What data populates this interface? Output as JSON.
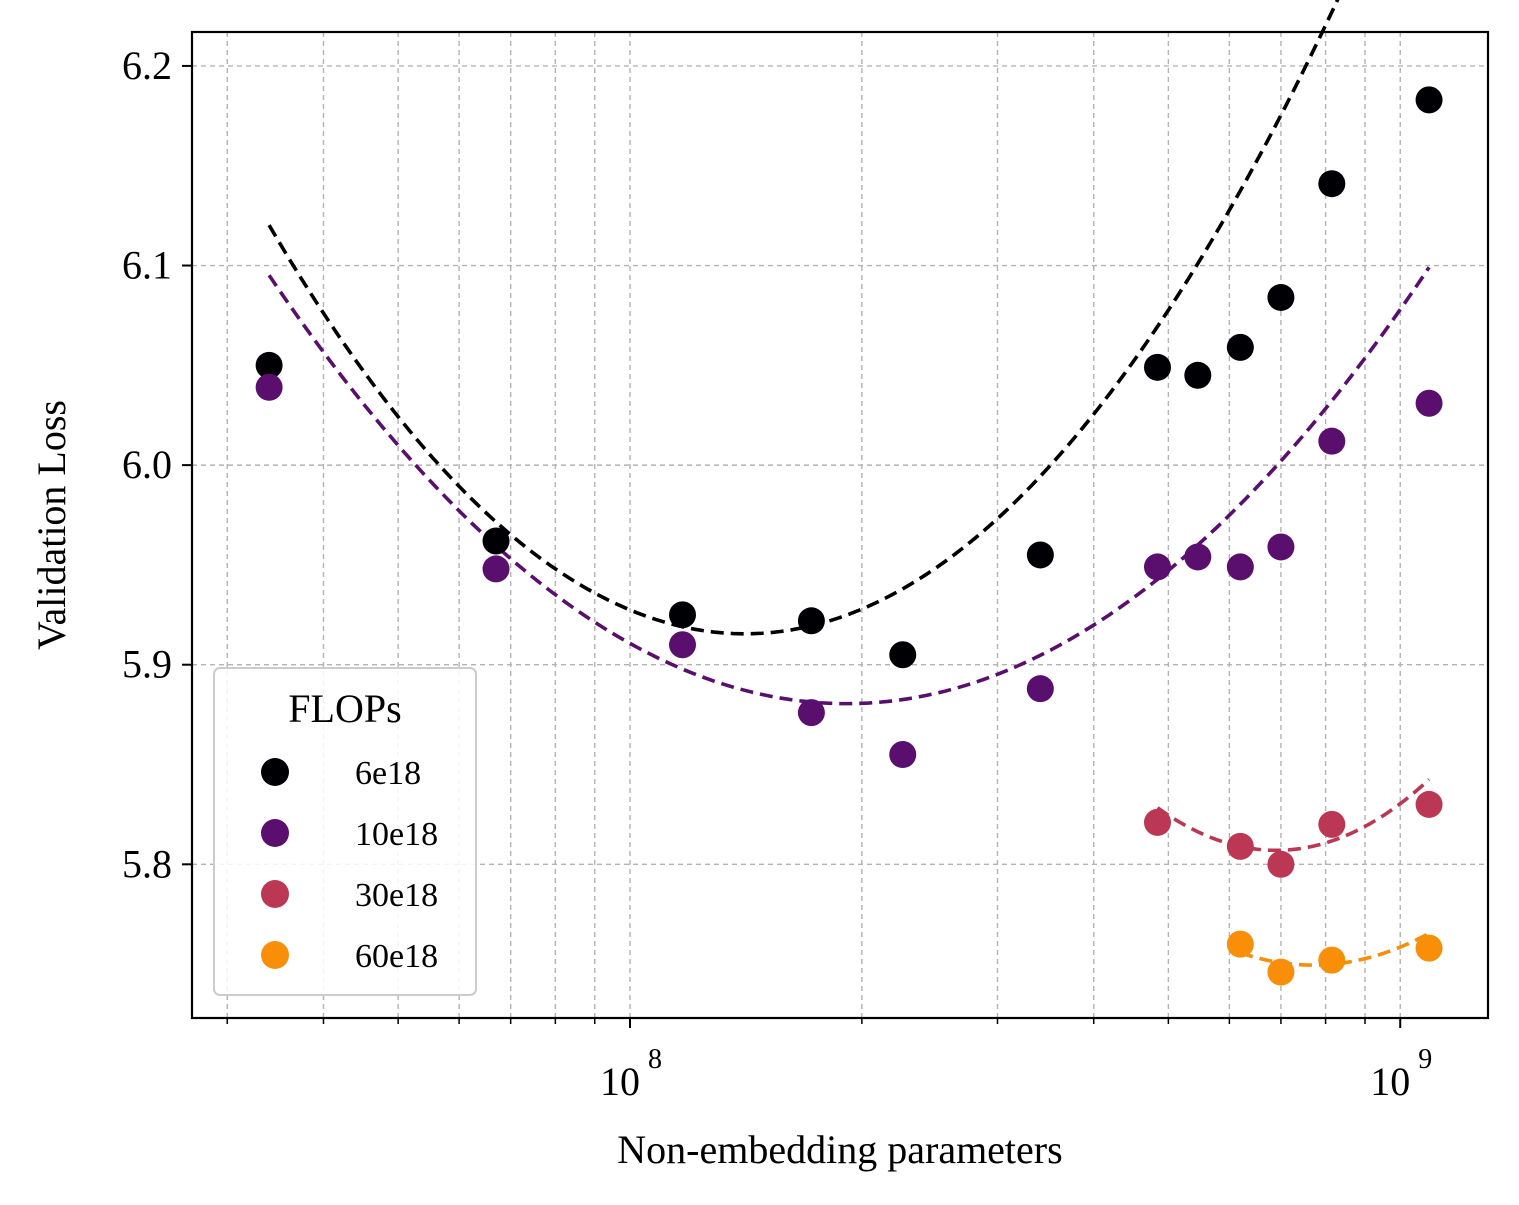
{
  "chart_data": {
    "type": "scatter",
    "title": "",
    "xlabel": "Non-embedding parameters",
    "ylabel": "Validation Loss",
    "x_scale": "log",
    "xlim": [
      27000000,
      1300000000
    ],
    "ylim": [
      5.723,
      6.217
    ],
    "grid": true,
    "x_major_ticks": [
      {
        "value": 100000000,
        "base": "10",
        "exp": "8"
      },
      {
        "value": 1000000000,
        "base": "10",
        "exp": "9"
      }
    ],
    "y_ticks": [
      5.8,
      5.9,
      6.0,
      6.1,
      6.2
    ],
    "legend": {
      "title": "FLOPs",
      "placement": "lower-left"
    },
    "series": [
      {
        "name": "6e18",
        "color": "#000004",
        "x": [
          34000000,
          67000000,
          117000000,
          172000000,
          226000000,
          341000000,
          484000000,
          546000000,
          620000000,
          700000000,
          815000000,
          1090000000
        ],
        "y": [
          6.05,
          5.962,
          5.925,
          5.922,
          5.905,
          5.955,
          6.049,
          6.045,
          6.059,
          6.084,
          6.141,
          6.183
        ],
        "fit": {
          "a": 5.9155,
          "v": 141000000,
          "b": 0.5365,
          "x_range": [
            34000000,
            1090000000
          ]
        }
      },
      {
        "name": "10e18",
        "color": "#5a0f6e",
        "x": [
          34000000,
          67000000,
          117000000,
          172000000,
          226000000,
          341000000,
          484000000,
          546000000,
          620000000,
          700000000,
          815000000,
          1090000000
        ],
        "y": [
          6.039,
          5.948,
          5.91,
          5.876,
          5.855,
          5.888,
          5.949,
          5.954,
          5.949,
          5.959,
          6.012,
          6.031
        ],
        "fit": {
          "a": 5.8805,
          "v": 191000000,
          "b": 0.382,
          "x_range": [
            34000000,
            1090000000
          ]
        }
      },
      {
        "name": "30e18",
        "color": "#bc3754",
        "x": [
          484000000,
          620000000,
          700000000,
          815000000,
          1090000000
        ],
        "y": [
          5.821,
          5.809,
          5.8,
          5.82,
          5.83
        ],
        "fit": {
          "a": 5.807,
          "v": 690000000,
          "b": 0.9,
          "x_range": [
            484000000,
            1090000000
          ]
        }
      },
      {
        "name": "60e18",
        "color": "#f98e09",
        "x": [
          620000000,
          700000000,
          815000000,
          1090000000
        ],
        "y": [
          5.76,
          5.746,
          5.752,
          5.758
        ],
        "fit": {
          "a": 5.7495,
          "v": 770000000,
          "b": 0.7,
          "x_range": [
            620000000,
            1090000000
          ]
        }
      }
    ]
  }
}
